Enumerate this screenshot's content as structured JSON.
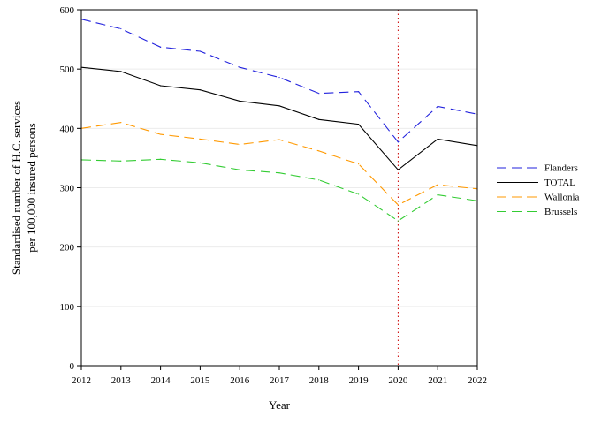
{
  "chart_data": {
    "type": "line",
    "xlabel": "Year",
    "ylabel_lines": [
      "Standardised number of H.C. services",
      "per 100,000 insured persons"
    ],
    "x": [
      2012,
      2013,
      2014,
      2015,
      2016,
      2017,
      2018,
      2019,
      2020,
      2021,
      2022
    ],
    "xlim": [
      2012,
      2022
    ],
    "ylim": [
      0,
      600
    ],
    "yticks": [
      0,
      100,
      200,
      300,
      400,
      500,
      600
    ],
    "grid": true,
    "legend_position": "right",
    "reference_line": {
      "x": 2020,
      "color": "#cc0000",
      "style": "dotted"
    },
    "series": [
      {
        "name": "Flanders",
        "color": "#2222dd",
        "dash": "dashed",
        "values": [
          584,
          568,
          537,
          530,
          503,
          486,
          459,
          462,
          377,
          437,
          424
        ]
      },
      {
        "name": "TOTAL",
        "color": "#000000",
        "dash": "solid",
        "values": [
          503,
          496,
          472,
          465,
          446,
          438,
          415,
          407,
          330,
          382,
          371
        ]
      },
      {
        "name": "Wallonia",
        "color": "#ff9900",
        "dash": "dashed",
        "values": [
          400,
          410,
          390,
          382,
          373,
          381,
          362,
          340,
          271,
          305,
          298
        ]
      },
      {
        "name": "Brussels",
        "color": "#33cc33",
        "dash": "dashed",
        "values": [
          347,
          345,
          348,
          342,
          330,
          325,
          313,
          289,
          244,
          288,
          278
        ]
      }
    ]
  }
}
